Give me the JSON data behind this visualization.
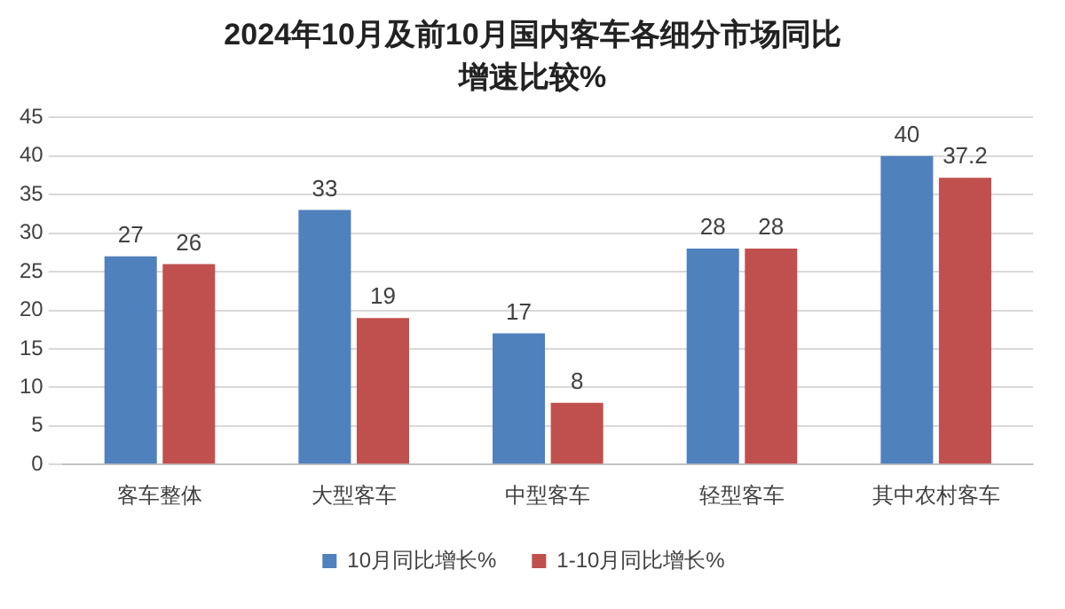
{
  "chart_data": {
    "type": "bar",
    "title": "2024年10月及前10月国内客车各细分市场同比增速比较%",
    "categories": [
      "客车整体",
      "大型客车",
      "中型客车",
      "轻型客车",
      "其中农村客车"
    ],
    "series": [
      {
        "name": "10月同比增长%",
        "color": "#4f81bd",
        "values": [
          27,
          33,
          17,
          28,
          40
        ]
      },
      {
        "name": "1-10月同比增长%",
        "color": "#c0504d",
        "values": [
          26,
          19,
          8,
          28,
          37.2
        ]
      }
    ],
    "ylim": [
      0,
      45
    ],
    "yticks": [
      0,
      5,
      10,
      15,
      20,
      25,
      30,
      35,
      40,
      45
    ],
    "grid": "y",
    "legend": "bottom",
    "data_labels": true
  }
}
